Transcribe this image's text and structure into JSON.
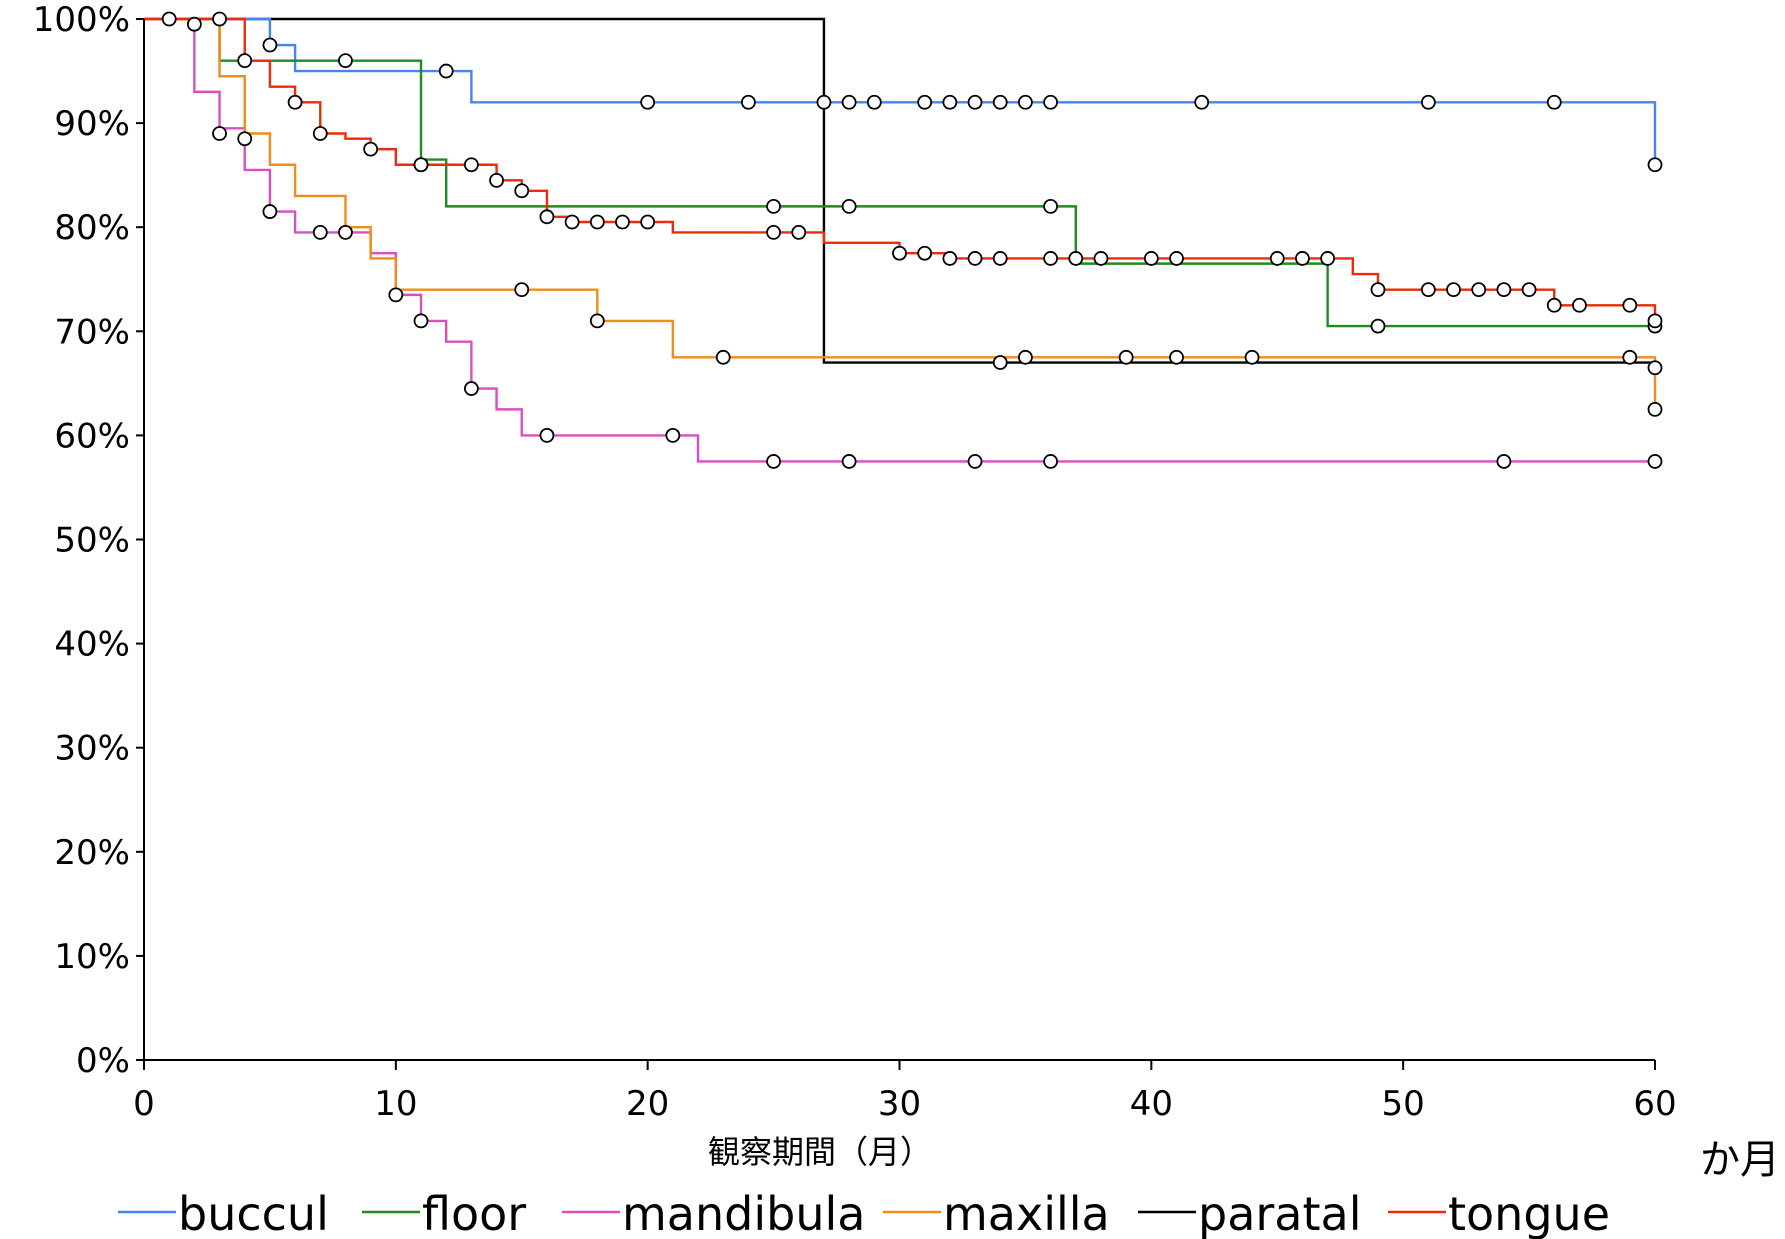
{
  "chart_data": {
    "type": "line",
    "step": true,
    "title": "",
    "xlabel": "観察期間（月）",
    "xunit": "か月",
    "ylabel": "",
    "xlim": [
      0,
      60
    ],
    "ylim": [
      0,
      100
    ],
    "xticks": [
      0,
      10,
      20,
      30,
      40,
      50,
      60
    ],
    "xtick_labels": [
      "0",
      "10",
      "20",
      "30",
      "40",
      "50",
      "60"
    ],
    "yticks": [
      0,
      10,
      20,
      30,
      40,
      50,
      60,
      70,
      80,
      90,
      100
    ],
    "ytick_labels": [
      "0%",
      "10%",
      "20%",
      "30%",
      "40%",
      "50%",
      "60%",
      "70%",
      "80%",
      "90%",
      "100%"
    ],
    "grid": false,
    "legend_position": "bottom",
    "censor_marker": "open-circle",
    "series": [
      {
        "name": "buccul",
        "color": "#4285f4",
        "steps": [
          [
            0,
            100
          ],
          [
            5,
            97.5
          ],
          [
            6,
            95
          ],
          [
            13,
            92
          ],
          [
            60,
            86
          ]
        ],
        "censored": [
          [
            5,
            97.5
          ],
          [
            12,
            95
          ],
          [
            20,
            92
          ],
          [
            24,
            92
          ],
          [
            27,
            92
          ],
          [
            28,
            92
          ],
          [
            29,
            92
          ],
          [
            31,
            92
          ],
          [
            32,
            92
          ],
          [
            33,
            92
          ],
          [
            34,
            92
          ],
          [
            35,
            92
          ],
          [
            36,
            92
          ],
          [
            42,
            92
          ],
          [
            51,
            92
          ],
          [
            56,
            92
          ],
          [
            60,
            86
          ]
        ]
      },
      {
        "name": "floor",
        "color": "#1e8c1e",
        "steps": [
          [
            0,
            100
          ],
          [
            3,
            96
          ],
          [
            11,
            86.5
          ],
          [
            12,
            82
          ],
          [
            37,
            76.5
          ],
          [
            47,
            70.5
          ],
          [
            60,
            70.5
          ]
        ],
        "censored": [
          [
            8,
            96
          ],
          [
            11,
            86
          ],
          [
            25,
            82
          ],
          [
            28,
            82
          ],
          [
            36,
            82
          ],
          [
            49,
            70.5
          ],
          [
            60,
            70.5
          ]
        ]
      },
      {
        "name": "mandibula",
        "color": "#d94fc0",
        "steps": [
          [
            0,
            100
          ],
          [
            2,
            93
          ],
          [
            3,
            89.5
          ],
          [
            4,
            85.5
          ],
          [
            5,
            81.5
          ],
          [
            6,
            79.5
          ],
          [
            9,
            77.5
          ],
          [
            10,
            73.5
          ],
          [
            11,
            71
          ],
          [
            12,
            69
          ],
          [
            13,
            64.5
          ],
          [
            14,
            62.5
          ],
          [
            15,
            60
          ],
          [
            22,
            57.5
          ],
          [
            60,
            57.5
          ]
        ],
        "censored": [
          [
            2,
            99.5
          ],
          [
            3,
            89
          ],
          [
            5,
            81.5
          ],
          [
            7,
            79.5
          ],
          [
            8,
            79.5
          ],
          [
            10,
            73.5
          ],
          [
            11,
            71
          ],
          [
            13,
            64.5
          ],
          [
            16,
            60
          ],
          [
            21,
            60
          ],
          [
            25,
            57.5
          ],
          [
            28,
            57.5
          ],
          [
            33,
            57.5
          ],
          [
            36,
            57.5
          ],
          [
            54,
            57.5
          ],
          [
            60,
            57.5
          ]
        ]
      },
      {
        "name": "maxilla",
        "color": "#f08c1a",
        "steps": [
          [
            0,
            100
          ],
          [
            3,
            94.5
          ],
          [
            4,
            89
          ],
          [
            5,
            86
          ],
          [
            6,
            83
          ],
          [
            8,
            80
          ],
          [
            9,
            77
          ],
          [
            10,
            74
          ],
          [
            18,
            71
          ],
          [
            21,
            67.5
          ],
          [
            60,
            62.5
          ]
        ],
        "censored": [
          [
            4,
            88.5
          ],
          [
            15,
            74
          ],
          [
            18,
            71
          ],
          [
            23,
            67.5
          ],
          [
            35,
            67.5
          ],
          [
            39,
            67.5
          ],
          [
            41,
            67.5
          ],
          [
            44,
            67.5
          ],
          [
            59,
            67.5
          ],
          [
            60,
            62.5
          ]
        ]
      },
      {
        "name": "paratal",
        "color": "#000000",
        "steps": [
          [
            0,
            100
          ],
          [
            27,
            67
          ],
          [
            60,
            67
          ]
        ],
        "censored": [
          [
            3,
            100
          ],
          [
            34,
            67
          ],
          [
            60,
            66.5
          ]
        ]
      },
      {
        "name": "tongue",
        "color": "#ee2a0a",
        "steps": [
          [
            0,
            100
          ],
          [
            4,
            96
          ],
          [
            5,
            93.5
          ],
          [
            6,
            92
          ],
          [
            7,
            89
          ],
          [
            8,
            88.5
          ],
          [
            9,
            87.5
          ],
          [
            10,
            86
          ],
          [
            13,
            86
          ],
          [
            14,
            84.5
          ],
          [
            15,
            83.5
          ],
          [
            16,
            81
          ],
          [
            17,
            80.5
          ],
          [
            21,
            79.5
          ],
          [
            27,
            78.5
          ],
          [
            30,
            77.5
          ],
          [
            32,
            77
          ],
          [
            48,
            75.5
          ],
          [
            49,
            74
          ],
          [
            56,
            72.5
          ],
          [
            60,
            71
          ]
        ],
        "censored": [
          [
            1,
            100
          ],
          [
            4,
            96
          ],
          [
            6,
            92
          ],
          [
            7,
            89
          ],
          [
            9,
            87.5
          ],
          [
            11,
            86
          ],
          [
            13,
            86
          ],
          [
            14,
            84.5
          ],
          [
            15,
            83.5
          ],
          [
            16,
            81
          ],
          [
            17,
            80.5
          ],
          [
            18,
            80.5
          ],
          [
            19,
            80.5
          ],
          [
            20,
            80.5
          ],
          [
            25,
            79.5
          ],
          [
            26,
            79.5
          ],
          [
            30,
            77.5
          ],
          [
            31,
            77.5
          ],
          [
            32,
            77
          ],
          [
            33,
            77
          ],
          [
            34,
            77
          ],
          [
            36,
            77
          ],
          [
            37,
            77
          ],
          [
            38,
            77
          ],
          [
            40,
            77
          ],
          [
            41,
            77
          ],
          [
            45,
            77
          ],
          [
            46,
            77
          ],
          [
            47,
            77
          ],
          [
            49,
            74
          ],
          [
            51,
            74
          ],
          [
            52,
            74
          ],
          [
            53,
            74
          ],
          [
            54,
            74
          ],
          [
            55,
            74
          ],
          [
            56,
            72.5
          ],
          [
            57,
            72.5
          ],
          [
            59,
            72.5
          ],
          [
            60,
            71
          ]
        ]
      }
    ]
  }
}
